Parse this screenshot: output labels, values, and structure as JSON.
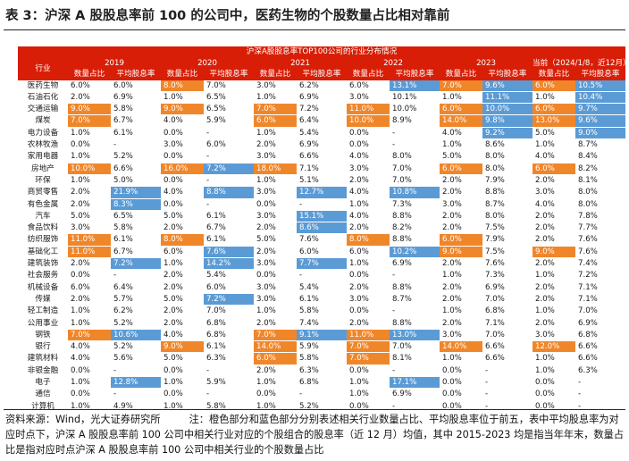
{
  "title": "表 3：沪深 A 股股息率前 100 的公司中，医药生物的个股数量占比相对靠前",
  "table": {
    "banner": "沪深A股股息率TOP100公司的行业分布情况",
    "industry_header": "行业",
    "years": [
      "2019",
      "2020",
      "2021",
      "2022",
      "2023",
      "当前（2024/1/8，近12月）"
    ],
    "col_count": "数量占比",
    "col_yield": "平均股息率",
    "rows": [
      {
        "name": "医药生物",
        "v": [
          "6.0%",
          "6.0%",
          "8.0%",
          "7.0%",
          "3.0%",
          "6.2%",
          "6.0%",
          "13.1%",
          "7.0%",
          "9.6%",
          "6.0%",
          "10.5%"
        ],
        "c": [
          "",
          "",
          "o",
          "",
          "",
          "",
          "",
          "b",
          "o",
          "b",
          "o",
          "b"
        ]
      },
      {
        "name": "石油石化",
        "v": [
          "2.0%",
          "6.9%",
          "1.0%",
          "6.5%",
          "1.0%",
          "6.9%",
          "3.0%",
          "10.1%",
          "1.0%",
          "11.1%",
          "1.0%",
          "10.4%"
        ],
        "c": [
          "",
          "",
          "",
          "",
          "",
          "",
          "",
          "",
          "",
          "b",
          "",
          "b"
        ]
      },
      {
        "name": "交通运输",
        "v": [
          "9.0%",
          "5.8%",
          "9.0%",
          "6.5%",
          "7.0%",
          "7.2%",
          "11.0%",
          "10.0%",
          "6.0%",
          "10.0%",
          "6.0%",
          "9.7%"
        ],
        "c": [
          "o",
          "",
          "o",
          "",
          "o",
          "",
          "o",
          "",
          "o",
          "b",
          "o",
          "b"
        ]
      },
      {
        "name": "煤炭",
        "v": [
          "7.0%",
          "6.7%",
          "4.0%",
          "5.9%",
          "6.0%",
          "6.4%",
          "10.0%",
          "8.9%",
          "14.0%",
          "9.8%",
          "13.0%",
          "9.6%"
        ],
        "c": [
          "o",
          "",
          "",
          "",
          "o",
          "",
          "o",
          "",
          "o",
          "b",
          "o",
          "b"
        ]
      },
      {
        "name": "电力设备",
        "v": [
          "1.0%",
          "6.1%",
          "0.0%",
          "-",
          "1.0%",
          "5.4%",
          "0.0%",
          "-",
          "4.0%",
          "9.2%",
          "5.0%",
          "9.0%"
        ],
        "c": [
          "",
          "",
          "",
          "",
          "",
          "",
          "",
          "",
          "",
          "b",
          "",
          "b"
        ]
      },
      {
        "name": "农林牧渔",
        "v": [
          "0.0%",
          "-",
          "3.0%",
          "6.0%",
          "2.0%",
          "6.9%",
          "0.0%",
          "-",
          "1.0%",
          "8.6%",
          "1.0%",
          "8.7%"
        ],
        "c": [
          "",
          "",
          "",
          "",
          "",
          "",
          "",
          "",
          "",
          "",
          "",
          ""
        ]
      },
      {
        "name": "家用电器",
        "v": [
          "1.0%",
          "5.2%",
          "0.0%",
          "-",
          "3.0%",
          "6.6%",
          "4.0%",
          "8.0%",
          "5.0%",
          "8.0%",
          "4.0%",
          "8.4%"
        ],
        "c": [
          "",
          "",
          "",
          "",
          "",
          "",
          "",
          "",
          "",
          "",
          "",
          ""
        ]
      },
      {
        "name": "房地产",
        "v": [
          "10.0%",
          "6.6%",
          "16.0%",
          "7.2%",
          "18.0%",
          "7.1%",
          "3.0%",
          "7.0%",
          "6.0%",
          "8.0%",
          "6.0%",
          "8.2%"
        ],
        "c": [
          "o",
          "",
          "o",
          "b",
          "o",
          "",
          "",
          "",
          "o",
          "",
          "o",
          ""
        ]
      },
      {
        "name": "环保",
        "v": [
          "1.0%",
          "5.0%",
          "0.0%",
          "-",
          "1.0%",
          "5.1%",
          "2.0%",
          "7.0%",
          "2.0%",
          "7.9%",
          "2.0%",
          "8.1%"
        ],
        "c": [
          "",
          "",
          "",
          "",
          "",
          "",
          "",
          "",
          "",
          "",
          "",
          ""
        ]
      },
      {
        "name": "商贸零售",
        "v": [
          "2.0%",
          "21.9%",
          "4.0%",
          "8.8%",
          "3.0%",
          "12.7%",
          "4.0%",
          "10.8%",
          "2.0%",
          "8.8%",
          "3.0%",
          "8.0%"
        ],
        "c": [
          "",
          "b",
          "",
          "b",
          "",
          "b",
          "",
          "b",
          "",
          "",
          "",
          ""
        ]
      },
      {
        "name": "有色金属",
        "v": [
          "2.0%",
          "8.3%",
          "0.0%",
          "-",
          "0.0%",
          "-",
          "1.0%",
          "7.3%",
          "3.0%",
          "8.7%",
          "4.0%",
          "8.0%"
        ],
        "c": [
          "",
          "b",
          "",
          "",
          "",
          "",
          "",
          "",
          "",
          "",
          "",
          ""
        ]
      },
      {
        "name": "汽车",
        "v": [
          "5.0%",
          "6.5%",
          "5.0%",
          "6.1%",
          "3.0%",
          "15.1%",
          "4.0%",
          "8.8%",
          "2.0%",
          "8.0%",
          "2.0%",
          "7.8%"
        ],
        "c": [
          "",
          "",
          "",
          "",
          "",
          "b",
          "",
          "",
          "",
          "",
          "",
          ""
        ]
      },
      {
        "name": "食品饮料",
        "v": [
          "3.0%",
          "5.8%",
          "2.0%",
          "6.7%",
          "2.0%",
          "8.6%",
          "2.0%",
          "8.2%",
          "2.0%",
          "7.5%",
          "2.0%",
          "7.7%"
        ],
        "c": [
          "",
          "",
          "",
          "",
          "",
          "b",
          "",
          "",
          "",
          "",
          "",
          ""
        ]
      },
      {
        "name": "纺织服饰",
        "v": [
          "11.0%",
          "6.1%",
          "8.0%",
          "6.1%",
          "5.0%",
          "7.6%",
          "8.0%",
          "8.8%",
          "6.0%",
          "7.9%",
          "2.0%",
          "7.6%"
        ],
        "c": [
          "o",
          "",
          "o",
          "",
          "",
          "",
          "o",
          "",
          "o",
          "",
          "",
          ""
        ]
      },
      {
        "name": "基础化工",
        "v": [
          "11.0%",
          "6.7%",
          "6.0%",
          "7.6%",
          "2.0%",
          "6.0%",
          "6.0%",
          "10.2%",
          "9.0%",
          "7.5%",
          "9.0%",
          "7.6%"
        ],
        "c": [
          "o",
          "",
          "",
          "b",
          "",
          "",
          "",
          "b",
          "o",
          "",
          "o",
          ""
        ]
      },
      {
        "name": "建筑装饰",
        "v": [
          "2.0%",
          "7.2%",
          "1.0%",
          "14.2%",
          "3.0%",
          "7.7%",
          "1.0%",
          "6.9%",
          "2.0%",
          "7.6%",
          "2.0%",
          "7.4%"
        ],
        "c": [
          "",
          "b",
          "",
          "b",
          "",
          "b",
          "",
          "",
          "",
          "",
          "",
          ""
        ]
      },
      {
        "name": "社会服务",
        "v": [
          "0.0%",
          "-",
          "2.0%",
          "5.4%",
          "0.0%",
          "-",
          "0.0%",
          "-",
          "1.0%",
          "7.3%",
          "1.0%",
          "7.2%"
        ],
        "c": [
          "",
          "",
          "",
          "",
          "",
          "",
          "",
          "",
          "",
          "",
          "",
          ""
        ]
      },
      {
        "name": "机械设备",
        "v": [
          "6.0%",
          "6.4%",
          "2.0%",
          "6.0%",
          "3.0%",
          "5.4%",
          "2.0%",
          "8.8%",
          "2.0%",
          "6.9%",
          "2.0%",
          "7.1%"
        ],
        "c": [
          "",
          "",
          "",
          "",
          "",
          "",
          "",
          "",
          "",
          "",
          "",
          ""
        ]
      },
      {
        "name": "传媒",
        "v": [
          "2.0%",
          "5.7%",
          "5.0%",
          "7.2%",
          "3.0%",
          "6.1%",
          "3.0%",
          "8.7%",
          "2.0%",
          "7.0%",
          "2.0%",
          "7.1%"
        ],
        "c": [
          "",
          "",
          "",
          "b",
          "",
          "",
          "",
          "",
          "",
          "",
          "",
          ""
        ]
      },
      {
        "name": "轻工制造",
        "v": [
          "1.0%",
          "6.2%",
          "2.0%",
          "7.0%",
          "1.0%",
          "5.8%",
          "0.0%",
          "-",
          "1.0%",
          "6.8%",
          "1.0%",
          "7.0%"
        ],
        "c": [
          "",
          "",
          "",
          "",
          "",
          "",
          "",
          "",
          "",
          "",
          "",
          ""
        ]
      },
      {
        "name": "公用事业",
        "v": [
          "1.0%",
          "5.2%",
          "2.0%",
          "6.8%",
          "2.0%",
          "7.4%",
          "2.0%",
          "8.8%",
          "2.0%",
          "7.1%",
          "2.0%",
          "6.9%"
        ],
        "c": [
          "",
          "",
          "",
          "",
          "",
          "",
          "",
          "",
          "",
          "",
          "",
          ""
        ]
      },
      {
        "name": "钢铁",
        "v": [
          "7.0%",
          "10.6%",
          "4.0%",
          "6.8%",
          "7.0%",
          "9.1%",
          "11.0%",
          "13.0%",
          "3.0%",
          "7.0%",
          "3.0%",
          "6.8%"
        ],
        "c": [
          "o",
          "b",
          "",
          "",
          "o",
          "b",
          "o",
          "b",
          "",
          "",
          "",
          ""
        ]
      },
      {
        "name": "银行",
        "v": [
          "4.0%",
          "5.2%",
          "9.0%",
          "6.1%",
          "14.0%",
          "5.9%",
          "7.0%",
          "7.0%",
          "14.0%",
          "6.6%",
          "12.0%",
          "6.6%"
        ],
        "c": [
          "",
          "",
          "o",
          "",
          "o",
          "",
          "o",
          "",
          "o",
          "",
          "o",
          ""
        ]
      },
      {
        "name": "建筑材料",
        "v": [
          "4.0%",
          "5.6%",
          "5.0%",
          "6.3%",
          "6.0%",
          "5.8%",
          "7.0%",
          "8.1%",
          "1.0%",
          "6.6%",
          "1.0%",
          "6.6%"
        ],
        "c": [
          "",
          "",
          "",
          "",
          "o",
          "",
          "o",
          "",
          "",
          "",
          "",
          ""
        ]
      },
      {
        "name": "非银金融",
        "v": [
          "0.0%",
          "-",
          "0.0%",
          "-",
          "2.0%",
          "6.3%",
          "0.0%",
          "-",
          "0.0%",
          "-",
          "1.0%",
          "6.3%"
        ],
        "c": [
          "",
          "",
          "",
          "",
          "",
          "",
          "",
          "",
          "",
          "",
          "",
          ""
        ]
      },
      {
        "name": "电子",
        "v": [
          "1.0%",
          "12.8%",
          "1.0%",
          "5.9%",
          "1.0%",
          "6.8%",
          "1.0%",
          "17.1%",
          "0.0%",
          "-",
          "0.0%",
          "-"
        ],
        "c": [
          "",
          "b",
          "",
          "",
          "",
          "",
          "",
          "b",
          "",
          "",
          "",
          ""
        ]
      },
      {
        "name": "通信",
        "v": [
          "0.0%",
          "-",
          "0.0%",
          "-",
          "0.0%",
          "-",
          "1.0%",
          "6.9%",
          "0.0%",
          "-",
          "0.0%",
          "-"
        ],
        "c": [
          "",
          "",
          "",
          "",
          "",
          "",
          "",
          "",
          "",
          "",
          "",
          ""
        ]
      },
      {
        "name": "计算机",
        "v": [
          "1.0%",
          "4.9%",
          "1.0%",
          "5.8%",
          "1.0%",
          "5.2%",
          "0.0%",
          "-",
          "0.0%",
          "-",
          "0.0%",
          "-"
        ],
        "c": [
          "",
          "",
          "",
          "",
          "",
          "",
          "",
          "",
          "",
          "",
          "",
          ""
        ]
      }
    ]
  },
  "footnote": {
    "source": "资料来源：Wind，光大证券研究所",
    "note": "注：橙色部分和蓝色部分分别表述相关行业数量占比、平均股息率位于前五，表中平均股息率为对应时点下，沪深 A 股股息率前 100 公司中相关行业对应的个股组合的股息率（近 12 月）均值，其中 2015-2023 均是指当年年末，数量占比是指对应时点沪深 A 股股息率前 100 公司中相关行业的个股数量占比"
  },
  "colors": {
    "header_red": "#d81e06",
    "orange": "#f0862a",
    "blue": "#5b9bd5"
  }
}
